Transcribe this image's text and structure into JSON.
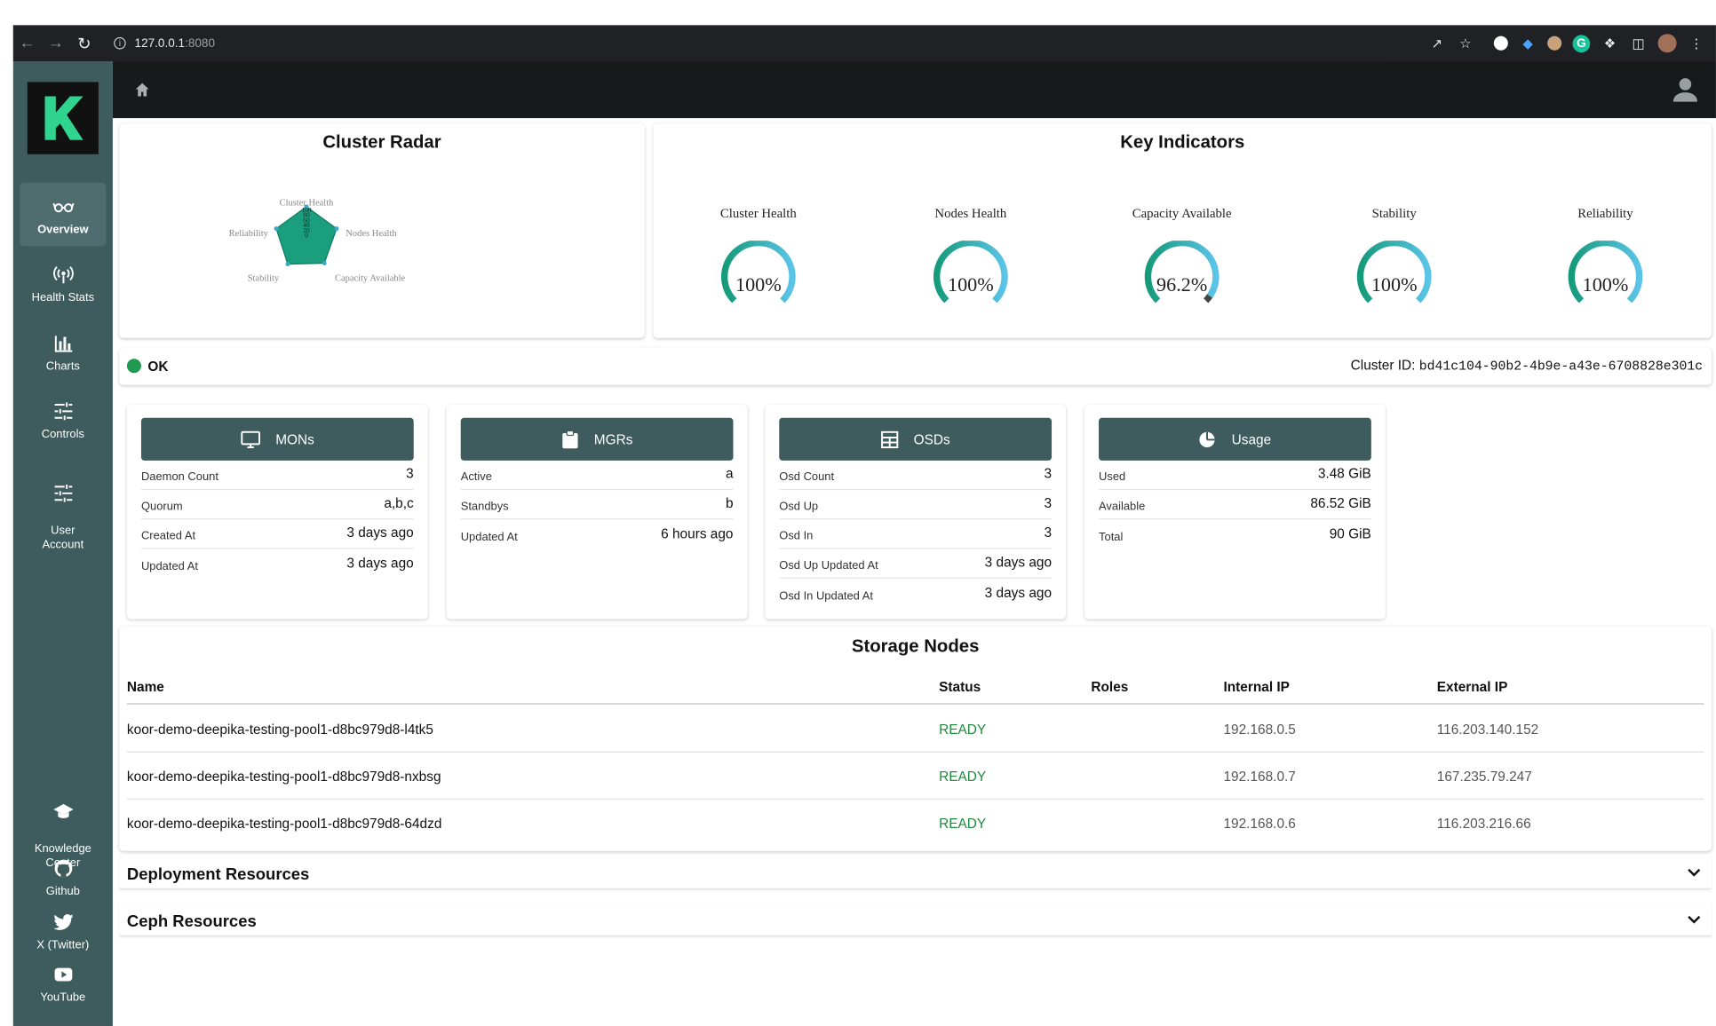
{
  "browser": {
    "url_host": "127.0.0.1",
    "url_port": ":8080"
  },
  "sidebar": {
    "items": [
      {
        "label": "Overview"
      },
      {
        "label": "Health Stats"
      },
      {
        "label": "Charts"
      },
      {
        "label": "Controls"
      },
      {
        "label": "User\nAccount"
      },
      {
        "label": "Knowledge\nCenter"
      },
      {
        "label": "Github"
      },
      {
        "label": "X (Twitter)"
      },
      {
        "label": "YouTube"
      }
    ]
  },
  "radar": {
    "title": "Cluster Radar",
    "axes": [
      "Cluster Health",
      "Nodes Health",
      "Capacity Available",
      "Stability",
      "Reliability"
    ],
    "values": [
      100,
      100,
      96.2,
      100,
      100
    ],
    "scale_max": 100,
    "fill": "#1a9e7e"
  },
  "indicators": {
    "title": "Key Indicators",
    "items": [
      {
        "label": "Cluster Health",
        "value": 100,
        "display": "100%"
      },
      {
        "label": "Nodes Health",
        "value": 100,
        "display": "100%"
      },
      {
        "label": "Capacity Available",
        "value": 96.2,
        "display": "96.2%"
      },
      {
        "label": "Stability",
        "value": 100,
        "display": "100%"
      },
      {
        "label": "Reliability",
        "value": 100,
        "display": "100%"
      }
    ],
    "colors": {
      "start": "#159a7a",
      "end": "#5bc4e8",
      "remainder": "#444444"
    }
  },
  "status": {
    "text": "OK",
    "color": "#1e9a50",
    "cluster_id_label": "Cluster ID:",
    "cluster_id": "bd41c104-90b2-4b9e-a43e-6708828e301c"
  },
  "mons": {
    "title": "MONs",
    "rows": [
      {
        "key": "Daemon Count",
        "value": "3"
      },
      {
        "key": "Quorum",
        "value": "a,b,c"
      },
      {
        "key": "Created At",
        "value": "3 days ago"
      },
      {
        "key": "Updated At",
        "value": "3 days ago"
      }
    ]
  },
  "mgrs": {
    "title": "MGRs",
    "rows": [
      {
        "key": "Active",
        "value": "a"
      },
      {
        "key": "Standbys",
        "value": "b"
      },
      {
        "key": "Updated At",
        "value": "6 hours ago"
      }
    ]
  },
  "osds": {
    "title": "OSDs",
    "rows": [
      {
        "key": "Osd Count",
        "value": "3"
      },
      {
        "key": "Osd Up",
        "value": "3"
      },
      {
        "key": "Osd In",
        "value": "3"
      },
      {
        "key": "Osd Up Updated At",
        "value": "3 days ago"
      },
      {
        "key": "Osd In Updated At",
        "value": "3 days ago"
      }
    ]
  },
  "usage": {
    "title": "Usage",
    "rows": [
      {
        "key": "Used",
        "value": "3.48 GiB"
      },
      {
        "key": "Available",
        "value": "86.52 GiB"
      },
      {
        "key": "Total",
        "value": "90 GiB"
      }
    ]
  },
  "storage_nodes": {
    "title": "Storage Nodes",
    "columns": [
      "Name",
      "Status",
      "Roles",
      "Internal IP",
      "External IP"
    ],
    "rows": [
      {
        "name": "koor-demo-deepika-testing-pool1-d8bc979d8-l4tk5",
        "status": "READY",
        "roles": "",
        "internal_ip": "192.168.0.5",
        "external_ip": "116.203.140.152"
      },
      {
        "name": "koor-demo-deepika-testing-pool1-d8bc979d8-nxbsg",
        "status": "READY",
        "roles": "",
        "internal_ip": "192.168.0.7",
        "external_ip": "167.235.79.247"
      },
      {
        "name": "koor-demo-deepika-testing-pool1-d8bc979d8-64dzd",
        "status": "READY",
        "roles": "",
        "internal_ip": "192.168.0.6",
        "external_ip": "116.203.216.66"
      }
    ]
  },
  "accordions": [
    {
      "title": "Deployment Resources"
    },
    {
      "title": "Ceph Resources"
    }
  ],
  "colors": {
    "sidebar": "#3e5b5e",
    "topbar": "#161a1b",
    "header_button": "#3e5b5e",
    "ready": "#1e8a3c",
    "logo_green": "#2fd58f"
  }
}
